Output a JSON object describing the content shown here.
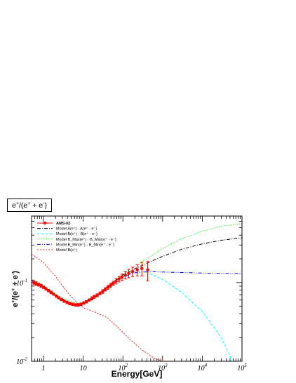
{
  "chart_data": {
    "type": "line",
    "title": "e+/(e+ + e-)",
    "xlabel": "Energy[GeV]",
    "ylabel": "e+/(e+ + e-)",
    "x_scale": "log",
    "y_scale": "log",
    "xlim": [
      0.5,
      100000
    ],
    "ylim": [
      0.01,
      0.7
    ],
    "x_ticks": [
      {
        "value": 1,
        "base": "1",
        "exp": ""
      },
      {
        "value": 10,
        "base": "10",
        "exp": ""
      },
      {
        "value": 100,
        "base": "10",
        "exp": "2"
      },
      {
        "value": 1000,
        "base": "10",
        "exp": "3"
      },
      {
        "value": 10000,
        "base": "10",
        "exp": "4"
      },
      {
        "value": 100000,
        "base": "10",
        "exp": "5"
      }
    ],
    "y_ticks": [
      {
        "value": 0.01,
        "base": "10",
        "exp": "-2"
      },
      {
        "value": 0.1,
        "base": "10",
        "exp": "-1"
      }
    ],
    "legend": [
      {
        "label": "AMS-02",
        "series": "ams02"
      },
      {
        "label": "Model A(e⁺) - A(e⁺ - e⁻)",
        "series": "model_a"
      },
      {
        "label": "Model B(e⁺) - B(e⁺ - e⁻)",
        "series": "model_b"
      },
      {
        "label": "Model B_Max(e⁺) - B_Max(e⁺ - e⁻)",
        "series": "model_bmax"
      },
      {
        "label": "Model B_Min(e⁺) - B_Min(e⁺ - e⁻)",
        "series": "model_bmin"
      },
      {
        "label": "Model B(e⁺)",
        "series": "model_bpos"
      }
    ],
    "legend_placement": "top-left",
    "series": [
      {
        "id": "ams02",
        "color": "#ff0000",
        "style": "markers-errorbars",
        "points": [
          [
            0.57,
            0.1,
            0.006
          ],
          [
            0.65,
            0.097,
            0.005
          ],
          [
            0.75,
            0.094,
            0.004
          ],
          [
            0.87,
            0.091,
            0.004
          ],
          [
            1.0,
            0.087,
            0.003
          ],
          [
            1.15,
            0.083,
            0.003
          ],
          [
            1.33,
            0.079,
            0.003
          ],
          [
            1.55,
            0.075,
            0.003
          ],
          [
            1.8,
            0.071,
            0.002
          ],
          [
            2.1,
            0.067,
            0.002
          ],
          [
            2.4,
            0.064,
            0.002
          ],
          [
            2.8,
            0.061,
            0.002
          ],
          [
            3.3,
            0.058,
            0.002
          ],
          [
            3.9,
            0.056,
            0.002
          ],
          [
            4.6,
            0.054,
            0.002
          ],
          [
            5.4,
            0.053,
            0.002
          ],
          [
            6.4,
            0.052,
            0.002
          ],
          [
            7.5,
            0.052,
            0.002
          ],
          [
            8.8,
            0.053,
            0.002
          ],
          [
            10.3,
            0.055,
            0.002
          ],
          [
            12,
            0.057,
            0.002
          ],
          [
            14,
            0.06,
            0.002
          ],
          [
            16.5,
            0.063,
            0.003
          ],
          [
            19,
            0.066,
            0.003
          ],
          [
            22.5,
            0.069,
            0.003
          ],
          [
            26.5,
            0.073,
            0.003
          ],
          [
            31,
            0.077,
            0.004
          ],
          [
            36,
            0.082,
            0.004
          ],
          [
            42,
            0.087,
            0.005
          ],
          [
            49,
            0.092,
            0.006
          ],
          [
            57,
            0.098,
            0.006
          ],
          [
            67,
            0.104,
            0.008
          ],
          [
            80,
            0.111,
            0.009
          ],
          [
            95,
            0.117,
            0.011
          ],
          [
            115,
            0.124,
            0.013
          ],
          [
            140,
            0.131,
            0.016
          ],
          [
            175,
            0.138,
            0.019
          ],
          [
            230,
            0.145,
            0.024
          ],
          [
            300,
            0.151,
            0.03
          ],
          [
            420,
            0.145,
            0.04
          ]
        ]
      },
      {
        "id": "model_a",
        "color": "#000000",
        "style": "dash-dot",
        "points": [
          [
            0.5,
            0.108
          ],
          [
            1,
            0.09
          ],
          [
            2,
            0.07
          ],
          [
            4,
            0.057
          ],
          [
            7,
            0.053
          ],
          [
            10,
            0.055
          ],
          [
            20,
            0.066
          ],
          [
            50,
            0.095
          ],
          [
            100,
            0.125
          ],
          [
            200,
            0.15
          ],
          [
            500,
            0.185
          ],
          [
            1000,
            0.215
          ],
          [
            3000,
            0.265
          ],
          [
            10000,
            0.31
          ],
          [
            30000,
            0.345
          ],
          [
            100000,
            0.37
          ]
        ]
      },
      {
        "id": "model_b",
        "color": "#00ffff",
        "style": "dashed",
        "points": [
          [
            0.5,
            0.104
          ],
          [
            1,
            0.087
          ],
          [
            2,
            0.068
          ],
          [
            4,
            0.056
          ],
          [
            7,
            0.052
          ],
          [
            10,
            0.054
          ],
          [
            20,
            0.064
          ],
          [
            50,
            0.092
          ],
          [
            100,
            0.12
          ],
          [
            200,
            0.14
          ],
          [
            400,
            0.135
          ],
          [
            1000,
            0.11
          ],
          [
            3000,
            0.075
          ],
          [
            10000,
            0.043
          ],
          [
            30000,
            0.02
          ],
          [
            60000,
            0.0095
          ]
        ]
      },
      {
        "id": "model_bmax",
        "color": "#00dd00",
        "style": "dotted",
        "points": [
          [
            0.5,
            0.112
          ],
          [
            1,
            0.093
          ],
          [
            2,
            0.072
          ],
          [
            4,
            0.059
          ],
          [
            7,
            0.055
          ],
          [
            10,
            0.056
          ],
          [
            20,
            0.067
          ],
          [
            50,
            0.097
          ],
          [
            100,
            0.128
          ],
          [
            200,
            0.16
          ],
          [
            500,
            0.215
          ],
          [
            1000,
            0.27
          ],
          [
            3000,
            0.36
          ],
          [
            10000,
            0.45
          ],
          [
            30000,
            0.52
          ],
          [
            100000,
            0.56
          ]
        ]
      },
      {
        "id": "model_bmin",
        "color": "#0000ee",
        "style": "dash-dot-dot",
        "points": [
          [
            0.5,
            0.106
          ],
          [
            1,
            0.088
          ],
          [
            2,
            0.069
          ],
          [
            4,
            0.056
          ],
          [
            7,
            0.052
          ],
          [
            10,
            0.054
          ],
          [
            20,
            0.064
          ],
          [
            50,
            0.092
          ],
          [
            100,
            0.118
          ],
          [
            200,
            0.133
          ],
          [
            500,
            0.138
          ],
          [
            1000,
            0.136
          ],
          [
            10000,
            0.132
          ],
          [
            100000,
            0.13
          ]
        ]
      },
      {
        "id": "model_bpos",
        "color": "#dd4444",
        "style": "short-dashed",
        "points": [
          [
            0.5,
            0.23
          ],
          [
            1,
            0.18
          ],
          [
            2,
            0.12
          ],
          [
            4,
            0.075
          ],
          [
            7,
            0.055
          ],
          [
            10,
            0.048
          ],
          [
            20,
            0.042
          ],
          [
            40,
            0.036
          ],
          [
            80,
            0.026
          ],
          [
            150,
            0.019
          ],
          [
            300,
            0.014
          ],
          [
            600,
            0.011
          ],
          [
            1100,
            0.0098
          ]
        ]
      }
    ]
  }
}
